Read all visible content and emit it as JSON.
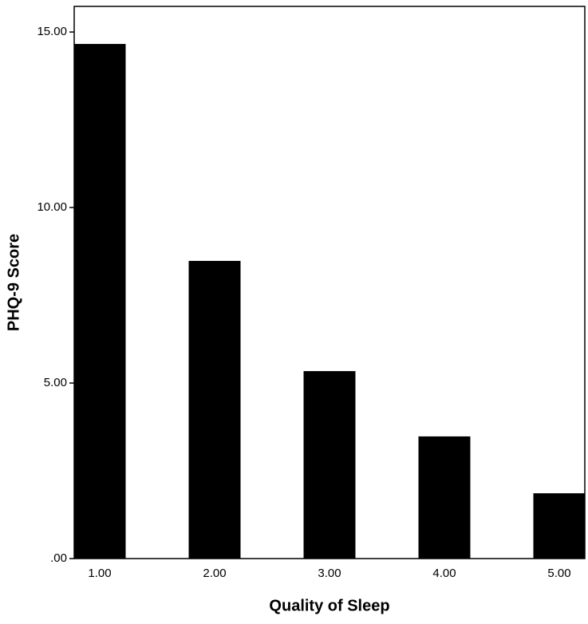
{
  "chart_data": {
    "type": "bar",
    "x_label": "Quality of Sleep",
    "y_label": "PHQ-9 Score",
    "categories": [
      "1.00",
      "2.00",
      "3.00",
      "4.00",
      "5.00"
    ],
    "values": [
      14.66,
      8.48,
      5.34,
      3.48,
      1.86
    ],
    "color": "#000000",
    "ylim": [
      0,
      15.73
    ],
    "yticks": [
      {
        "value": 0,
        "label": ".00"
      },
      {
        "value": 5,
        "label": "5.00"
      },
      {
        "value": 10,
        "label": "10.00"
      },
      {
        "value": 15,
        "label": "15.00"
      }
    ],
    "grid": false
  }
}
